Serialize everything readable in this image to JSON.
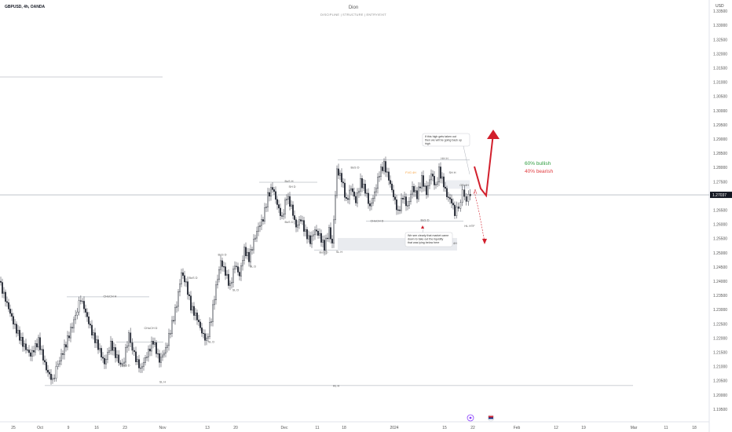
{
  "header": {
    "symbol": "GBPUSD, 4h, OANDA",
    "author": "Dion",
    "subtitle": "DISCIPLINE  |  STRUCTURE  |  ENTRY/EXIT",
    "currency": "USD"
  },
  "colors": {
    "up": "#2a2e39",
    "down": "#2a2e39",
    "bullish": "#2e9c3f",
    "bearish": "#e03a3e",
    "arrow": "#d21f2c",
    "last_price_bg": "#131722",
    "orange_label": "#f7a13b"
  },
  "chart_data": {
    "type": "candlestick",
    "timeframe": "4h",
    "instrument": "GBPUSD",
    "ylim": [
      1.195,
      1.3375
    ],
    "price_ticks": [
      "1.33500",
      "1.33000",
      "1.32500",
      "1.32000",
      "1.31500",
      "1.31000",
      "1.30500",
      "1.30000",
      "1.29500",
      "1.29000",
      "1.28500",
      "1.28000",
      "1.27500",
      "1.27037",
      "1.26500",
      "1.26000",
      "1.25500",
      "1.25000",
      "1.24500",
      "1.24000",
      "1.23500",
      "1.23000",
      "1.22500",
      "1.22000",
      "1.21500",
      "1.21000",
      "1.20500",
      "1.20000",
      "1.19500"
    ],
    "last_price": "1.27037",
    "x_ticks": [
      "25",
      "Oct",
      "9",
      "16",
      "23",
      "Nov",
      "13",
      "20",
      "Dec",
      "11",
      "18",
      "2024",
      "15",
      "22",
      "Feb",
      "12",
      "19",
      "Mar",
      "11",
      "18"
    ],
    "price_path": [
      [
        0,
        1.24
      ],
      [
        10,
        1.232
      ],
      [
        20,
        1.224
      ],
      [
        30,
        1.218
      ],
      [
        40,
        1.214
      ],
      [
        50,
        1.219
      ],
      [
        60,
        1.209
      ],
      [
        68,
        1.205
      ],
      [
        75,
        1.211
      ],
      [
        85,
        1.218
      ],
      [
        95,
        1.226
      ],
      [
        104,
        1.234
      ],
      [
        110,
        1.229
      ],
      [
        118,
        1.222
      ],
      [
        126,
        1.217
      ],
      [
        134,
        1.211
      ],
      [
        142,
        1.218
      ],
      [
        150,
        1.213
      ],
      [
        157,
        1.21
      ],
      [
        165,
        1.221
      ],
      [
        172,
        1.214
      ],
      [
        180,
        1.209
      ],
      [
        188,
        1.214
      ],
      [
        196,
        1.219
      ],
      [
        204,
        1.212
      ],
      [
        212,
        1.216
      ],
      [
        220,
        1.225
      ],
      [
        226,
        1.232
      ],
      [
        232,
        1.243
      ],
      [
        238,
        1.239
      ],
      [
        244,
        1.231
      ],
      [
        252,
        1.227
      ],
      [
        258,
        1.222
      ],
      [
        264,
        1.219
      ],
      [
        270,
        1.227
      ],
      [
        276,
        1.238
      ],
      [
        282,
        1.247
      ],
      [
        288,
        1.243
      ],
      [
        294,
        1.238
      ],
      [
        300,
        1.246
      ],
      [
        306,
        1.242
      ],
      [
        312,
        1.251
      ],
      [
        318,
        1.248
      ],
      [
        324,
        1.254
      ],
      [
        330,
        1.259
      ],
      [
        336,
        1.262
      ],
      [
        342,
        1.27
      ],
      [
        348,
        1.273
      ],
      [
        354,
        1.267
      ],
      [
        360,
        1.262
      ],
      [
        366,
        1.27
      ],
      [
        372,
        1.266
      ],
      [
        378,
        1.259
      ],
      [
        384,
        1.262
      ],
      [
        390,
        1.257
      ],
      [
        396,
        1.254
      ],
      [
        402,
        1.258
      ],
      [
        408,
        1.256
      ],
      [
        414,
        1.252
      ],
      [
        420,
        1.258
      ],
      [
        424,
        1.253
      ],
      [
        430,
        1.279
      ],
      [
        436,
        1.276
      ],
      [
        442,
        1.268
      ],
      [
        448,
        1.273
      ],
      [
        454,
        1.268
      ],
      [
        460,
        1.275
      ],
      [
        466,
        1.272
      ],
      [
        472,
        1.266
      ],
      [
        478,
        1.271
      ],
      [
        484,
        1.278
      ],
      [
        490,
        1.281
      ],
      [
        496,
        1.276
      ],
      [
        502,
        1.27
      ],
      [
        508,
        1.264
      ],
      [
        514,
        1.27
      ],
      [
        520,
        1.266
      ],
      [
        526,
        1.273
      ],
      [
        532,
        1.27
      ],
      [
        538,
        1.276
      ],
      [
        544,
        1.271
      ],
      [
        550,
        1.278
      ],
      [
        556,
        1.273
      ],
      [
        560,
        1.279
      ],
      [
        566,
        1.274
      ],
      [
        570,
        1.27
      ],
      [
        576,
        1.268
      ],
      [
        580,
        1.264
      ],
      [
        585,
        1.266
      ],
      [
        590,
        1.271
      ],
      [
        595,
        1.269
      ],
      [
        600,
        1.27
      ]
    ],
    "labels": {
      "choch_h_1": "CHoCH H",
      "choch_d": "CHoCH D",
      "bos_d": "BoS D",
      "sl_h": "SL H",
      "sl_d": "SL D",
      "bos_h": "BoS H",
      "sh_d": "SH D",
      "ob_4h": "OB 4H",
      "hl_h": "HL H",
      "hh_h": "HH H",
      "hl_htf": "HL HTF",
      "fvg_4h": "FVG 4H",
      "sh_h": "SH H",
      "ob_4h_2": "OB 4H",
      "choch_d_2": "CHoCH D"
    },
    "annotations": {
      "bullish": "60% bullish",
      "bearish": "40% bearish",
      "note_top": "If this high gets taken out then we will be going back up high",
      "note_bottom": "We see clearly that market came down to take out the liquidity that was lying below here"
    }
  }
}
